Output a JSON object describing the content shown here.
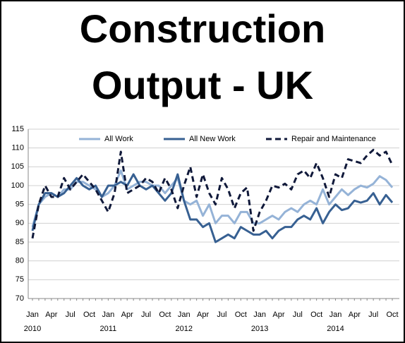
{
  "chart_data": {
    "type": "line",
    "title_lines": [
      "Construction",
      "Output - UK"
    ],
    "categories": [
      "Jan",
      null,
      null,
      "Apr",
      null,
      null,
      "Jul",
      null,
      null,
      "Oct",
      null,
      null,
      "Jan",
      null,
      null,
      "Apr",
      null,
      null,
      "Jul",
      null,
      null,
      "Oct",
      null,
      null,
      "Jan",
      null,
      null,
      "Apr",
      null,
      null,
      "Jul",
      null,
      null,
      "Oct",
      null,
      null,
      "Jan",
      null,
      null,
      "Apr",
      null,
      null,
      "Jul",
      null,
      null,
      "Oct",
      null,
      null,
      "Jan",
      null,
      null,
      "Apr",
      null,
      null,
      "Jul",
      null,
      null,
      "Oct"
    ],
    "year_labels": [
      "2010",
      "2011",
      "2012",
      "2013",
      "2014"
    ],
    "series": [
      {
        "name": "All Work",
        "color": "#95b3d7",
        "dash": false,
        "values": [
          89,
          95,
          97,
          98,
          97,
          99,
          99,
          101,
          101,
          100,
          99,
          97,
          98,
          100,
          104,
          99,
          100,
          101,
          101,
          100,
          100,
          98,
          100,
          102,
          96,
          95,
          96,
          92,
          95,
          90,
          92,
          92,
          90,
          93,
          93,
          90,
          90,
          91,
          92,
          91,
          93,
          94,
          93,
          95,
          96,
          95,
          99,
          95,
          97,
          99,
          97.5,
          99,
          100,
          99.5,
          100.5,
          102.5,
          101.5,
          99.5
        ]
      },
      {
        "name": "All New Work",
        "color": "#376092",
        "dash": false,
        "values": [
          88,
          95,
          98,
          98,
          97,
          98,
          100,
          102,
          100,
          99,
          100,
          97,
          100,
          100,
          101,
          100,
          103,
          100,
          99,
          100,
          98,
          96,
          98,
          103,
          96,
          91,
          91,
          89,
          90,
          85,
          86,
          87,
          86,
          89,
          88,
          87,
          87,
          88,
          86,
          88,
          89,
          89,
          91,
          92,
          91,
          94,
          90,
          93,
          95,
          93.5,
          94,
          96,
          95.5,
          96,
          98,
          95,
          97.5,
          95.5
        ]
      },
      {
        "name": "Repair and Maintenance",
        "color": "#10193a",
        "dash": true,
        "values": [
          86,
          95,
          100,
          97,
          97,
          102,
          99,
          101,
          103,
          101,
          99,
          96,
          93,
          98,
          109,
          98,
          99,
          100,
          102,
          101,
          98,
          102,
          99,
          94,
          100,
          105,
          97,
          103,
          98,
          95,
          102,
          99,
          94,
          98,
          99.5,
          88,
          93,
          96,
          100,
          99.5,
          100.5,
          99,
          103,
          104,
          102,
          106,
          102,
          97,
          103,
          102,
          107,
          106.5,
          106,
          108,
          109.5,
          108,
          109,
          105.5
        ]
      }
    ],
    "ylim": [
      70,
      115
    ],
    "yticks": [
      70,
      75,
      80,
      85,
      90,
      95,
      100,
      105,
      110,
      115
    ],
    "grid": true
  }
}
